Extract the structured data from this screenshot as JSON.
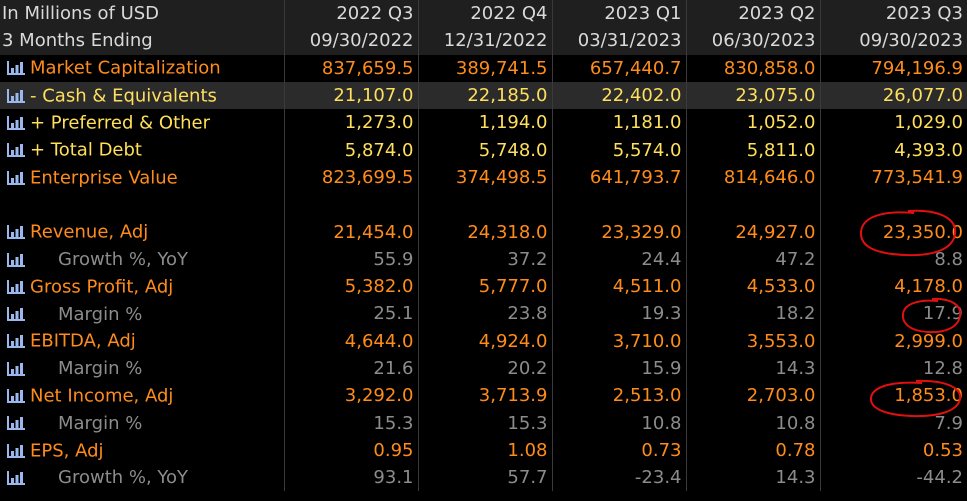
{
  "header": {
    "units_label": "In Millions of USD",
    "period_label": "3 Months Ending",
    "periods": [
      "2022 Q3",
      "2022 Q4",
      "2023 Q1",
      "2023 Q2",
      "2023 Q3"
    ],
    "dates": [
      "09/30/2022",
      "12/31/2022",
      "03/31/2023",
      "06/30/2023",
      "09/30/2023"
    ]
  },
  "rows": [
    {
      "label": "Market Capitalization",
      "values": [
        "837,659.5",
        "389,741.5",
        "657,440.7",
        "830,858.0",
        "794,196.9"
      ]
    },
    {
      "label": "- Cash & Equivalents",
      "values": [
        "21,107.0",
        "22,185.0",
        "22,402.0",
        "23,075.0",
        "26,077.0"
      ]
    },
    {
      "label": "+ Preferred & Other",
      "values": [
        "1,273.0",
        "1,194.0",
        "1,181.0",
        "1,052.0",
        "1,029.0"
      ]
    },
    {
      "label": "+ Total Debt",
      "values": [
        "5,874.0",
        "5,748.0",
        "5,574.0",
        "5,811.0",
        "4,393.0"
      ]
    },
    {
      "label": "Enterprise Value",
      "values": [
        "823,699.5",
        "374,498.5",
        "641,793.7",
        "814,646.0",
        "773,541.9"
      ]
    },
    {
      "label": "Revenue, Adj",
      "values": [
        "21,454.0",
        "24,318.0",
        "23,329.0",
        "24,927.0",
        "23,350.0"
      ]
    },
    {
      "label": "Growth %, YoY",
      "values": [
        "55.9",
        "37.2",
        "24.4",
        "47.2",
        "8.8"
      ]
    },
    {
      "label": "Gross Profit, Adj",
      "values": [
        "5,382.0",
        "5,777.0",
        "4,511.0",
        "4,533.0",
        "4,178.0"
      ]
    },
    {
      "label": "Margin %",
      "values": [
        "25.1",
        "23.8",
        "19.3",
        "18.2",
        "17.9"
      ]
    },
    {
      "label": "EBITDA, Adj",
      "values": [
        "4,644.0",
        "4,924.0",
        "3,710.0",
        "3,553.0",
        "2,999.0"
      ]
    },
    {
      "label": "Margin %",
      "values": [
        "21.6",
        "20.2",
        "15.9",
        "14.3",
        "12.8"
      ]
    },
    {
      "label": "Net Income, Adj",
      "values": [
        "3,292.0",
        "3,713.9",
        "2,513.0",
        "2,703.0",
        "1,853.0"
      ]
    },
    {
      "label": "Margin %",
      "values": [
        "15.3",
        "15.3",
        "10.8",
        "10.8",
        "7.9"
      ]
    },
    {
      "label": "EPS, Adj",
      "values": [
        "0.95",
        "1.08",
        "0.73",
        "0.78",
        "0.53"
      ]
    },
    {
      "label": "Growth %, YoY",
      "values": [
        "93.1",
        "57.7",
        "-23.4",
        "14.3",
        "-44.2"
      ]
    }
  ],
  "icon": "bar-chart-icon",
  "colors": {
    "background": "#000000",
    "header_bg": "#1f1f1f",
    "highlight_bg": "#2b2b2b",
    "label_orange": "#ff8c1a",
    "label_yellow": "#ffdf5b",
    "value_gray": "#8c8c8c",
    "icon_blue": "#9ab8ee",
    "annotation_red": "#e01010"
  }
}
